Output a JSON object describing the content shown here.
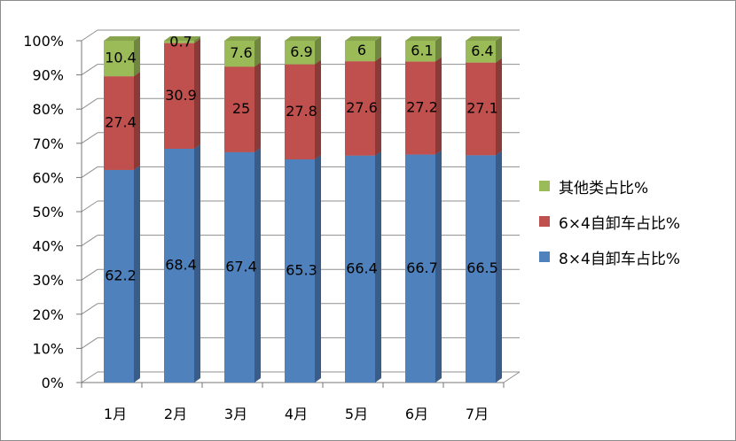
{
  "chart_data": {
    "type": "bar",
    "stacked": true,
    "categories": [
      "1月",
      "2月",
      "3月",
      "4月",
      "5月",
      "6月",
      "7月"
    ],
    "series": [
      {
        "name": "8×4自卸车占比%",
        "values": [
          62.2,
          68.4,
          67.4,
          65.3,
          66.4,
          66.7,
          66.5
        ],
        "color": "#4F81BD"
      },
      {
        "name": "6×4自卸车占比%",
        "values": [
          27.4,
          30.9,
          25,
          27.8,
          27.6,
          27.2,
          27.1
        ],
        "color": "#C0504D"
      },
      {
        "name": "其他类占比%",
        "values": [
          10.4,
          0.7,
          7.6,
          6.9,
          6,
          6.1,
          6.4
        ],
        "color": "#9BBB59"
      }
    ],
    "y_ticks": [
      "0%",
      "10%",
      "20%",
      "30%",
      "40%",
      "50%",
      "60%",
      "70%",
      "80%",
      "90%",
      "100%"
    ],
    "ylim": [
      0,
      100
    ],
    "legend_position": "right",
    "grid": true
  }
}
